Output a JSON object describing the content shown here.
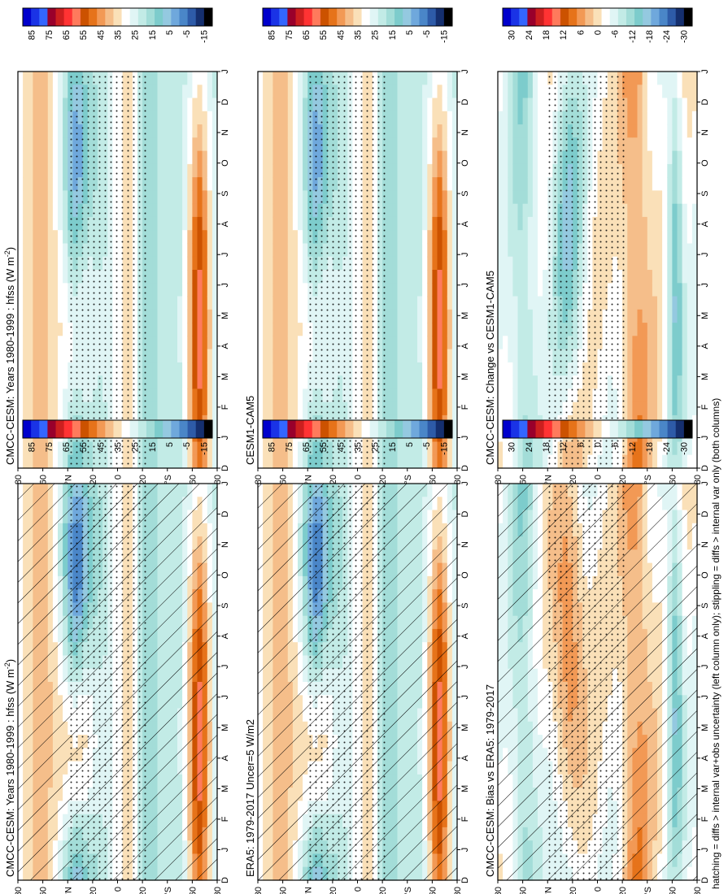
{
  "figure": {
    "footnote": "hatching = diffs > internal var+obs uncertainty (left column only); stippling = diffs > internal var only (both columns)"
  },
  "chart_data": [
    {
      "type": "heatmap",
      "title": "CMCC-CESM: Years 1980-1999 : hfss (W m",
      "title_sup": "-2",
      "title_close": ")",
      "x_ticks": [
        "D",
        "J",
        "F",
        "M",
        "A",
        "M",
        "J",
        "J",
        "A",
        "S",
        "O",
        "N",
        "D",
        "J"
      ],
      "y_ticks": [
        "80",
        "60",
        "°N",
        "20",
        "0",
        "20",
        "°S",
        "60",
        "80"
      ],
      "colorbar": [
        "85",
        "75",
        "65",
        "55",
        "45",
        "35",
        "25",
        "15",
        "5",
        "-5",
        "-15"
      ],
      "hatching": true,
      "stippling": true
    },
    {
      "type": "heatmap",
      "title": "CMCC-CESM: Years 1980-1999 : hfss (W m",
      "title_sup": "-2",
      "title_close": ")",
      "x_ticks": [
        "D",
        "J",
        "F",
        "M",
        "A",
        "M",
        "J",
        "J",
        "A",
        "S",
        "O",
        "N",
        "D",
        "J"
      ],
      "y_ticks": [
        "80",
        "60",
        "°N",
        "20",
        "0",
        "20",
        "°S",
        "60",
        "80"
      ],
      "colorbar": [
        "85",
        "75",
        "65",
        "55",
        "45",
        "35",
        "25",
        "15",
        "5",
        "-5",
        "-15"
      ],
      "hatching": false,
      "stippling": true
    },
    {
      "type": "heatmap",
      "title": "ERA5: 1979-2017 Uncer=5 W/m2",
      "x_ticks": [
        "D",
        "J",
        "F",
        "M",
        "A",
        "M",
        "J",
        "J",
        "A",
        "S",
        "O",
        "N",
        "D",
        "J"
      ],
      "y_ticks": [
        "80",
        "60",
        "°N",
        "20",
        "0",
        "20",
        "°S",
        "60",
        "80"
      ],
      "colorbar": [
        "85",
        "75",
        "65",
        "55",
        "45",
        "35",
        "25",
        "15",
        "5",
        "-5",
        "-15"
      ],
      "hatching": true,
      "stippling": true
    },
    {
      "type": "heatmap",
      "title": "CESM1-CAM5",
      "x_ticks": [
        "D",
        "J",
        "F",
        "M",
        "A",
        "M",
        "J",
        "J",
        "A",
        "S",
        "O",
        "N",
        "D",
        "J"
      ],
      "y_ticks": [
        "80",
        "60",
        "°N",
        "20",
        "0",
        "20",
        "°S",
        "60",
        "80"
      ],
      "colorbar": [
        "85",
        "75",
        "65",
        "55",
        "45",
        "35",
        "25",
        "15",
        "5",
        "-5",
        "-15"
      ],
      "hatching": false,
      "stippling": true
    },
    {
      "type": "heatmap",
      "title": "CMCC-CESM: Bias vs ERA5: 1979-2017",
      "x_ticks": [
        "D",
        "J",
        "F",
        "M",
        "A",
        "M",
        "J",
        "J",
        "A",
        "S",
        "O",
        "N",
        "D",
        "J"
      ],
      "y_ticks": [
        "80",
        "60",
        "°N",
        "20",
        "0",
        "20",
        "°S",
        "60",
        "80"
      ],
      "colorbar": [
        "30",
        "24",
        "18",
        "12",
        "6",
        "0",
        "-6",
        "-12",
        "-18",
        "-24",
        "-30"
      ],
      "hatching": true,
      "stippling": true
    },
    {
      "type": "heatmap",
      "title": "CMCC-CESM: Change vs CESM1-CAM5",
      "x_ticks": [
        "D",
        "J",
        "F",
        "M",
        "A",
        "M",
        "J",
        "J",
        "A",
        "S",
        "O",
        "N",
        "D",
        "J"
      ],
      "y_ticks": [
        "80",
        "60",
        "°N",
        "20",
        "0",
        "20",
        "°S",
        "60",
        "80"
      ],
      "colorbar": [
        "30",
        "24",
        "18",
        "12",
        "6",
        "0",
        "-6",
        "-12",
        "-18",
        "-24",
        "-30"
      ],
      "hatching": false,
      "stippling": true
    }
  ],
  "palette": [
    "#0000cc",
    "#1a33e6",
    "#3366ff",
    "#99002b",
    "#cc1f1f",
    "#ff3333",
    "#ff7a5c",
    "#cc5200",
    "#e6731a",
    "#f29955",
    "#f5be8a",
    "#fae0b8",
    "#ffffff",
    "#e0f5f5",
    "#c2ebe6",
    "#a3ddd8",
    "#7dcccc",
    "#94c9e0",
    "#6fa8dc",
    "#4a86c8",
    "#2e5ba8",
    "#152f6e",
    "#000000"
  ]
}
